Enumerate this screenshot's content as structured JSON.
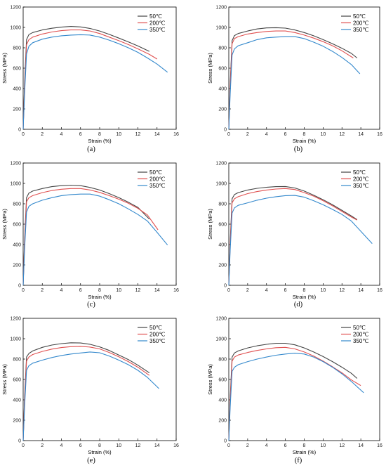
{
  "chart_data": [
    {
      "type": "line",
      "panel_label": "(a)",
      "xlabel": "Strain (%)",
      "ylabel": "Stress (MPa)",
      "xlim": [
        0,
        16
      ],
      "ylim": [
        0,
        1200
      ],
      "xticks": [
        0,
        2,
        4,
        6,
        8,
        10,
        12,
        14,
        16
      ],
      "yticks": [
        0,
        200,
        400,
        600,
        800,
        1000,
        1200
      ],
      "legend_position": "top-right",
      "series": [
        {
          "name": "50℃",
          "color": "#444444",
          "x": [
            0,
            0.15,
            0.35,
            0.6,
            1,
            2,
            3,
            4,
            5,
            6,
            7,
            8,
            9,
            10,
            11,
            12,
            13.2
          ],
          "y": [
            0,
            450,
            880,
            930,
            950,
            975,
            992,
            1003,
            1010,
            1005,
            990,
            965,
            932,
            895,
            858,
            818,
            765
          ]
        },
        {
          "name": "200℃",
          "color": "#e05050",
          "x": [
            0,
            0.15,
            0.35,
            0.6,
            1,
            2,
            3,
            4,
            5,
            6,
            7,
            8,
            9,
            10,
            11,
            12,
            13.2,
            14
          ],
          "y": [
            0,
            400,
            830,
            880,
            905,
            935,
            955,
            968,
            975,
            975,
            965,
            940,
            905,
            870,
            832,
            790,
            735,
            690
          ]
        },
        {
          "name": "350℃",
          "color": "#3388cc",
          "x": [
            0,
            0.15,
            0.35,
            0.6,
            1,
            2,
            3,
            4,
            5,
            6,
            7,
            8,
            9,
            10,
            11,
            12,
            13,
            14,
            15.1
          ],
          "y": [
            0,
            350,
            740,
            815,
            850,
            885,
            905,
            918,
            925,
            928,
            925,
            905,
            875,
            840,
            800,
            755,
            700,
            640,
            560
          ]
        }
      ]
    },
    {
      "type": "line",
      "panel_label": "(b)",
      "xlabel": "Strain (%)",
      "ylabel": "Stress (MPa)",
      "xlim": [
        0,
        16
      ],
      "ylim": [
        0,
        1200
      ],
      "xticks": [
        0,
        2,
        4,
        6,
        8,
        10,
        12,
        14,
        16
      ],
      "yticks": [
        0,
        200,
        400,
        600,
        800,
        1000,
        1200
      ],
      "legend_position": "top-right",
      "series": [
        {
          "name": "50℃",
          "color": "#444444",
          "x": [
            0,
            0.15,
            0.35,
            0.6,
            1,
            2,
            3,
            4,
            5,
            6,
            7,
            8,
            9,
            10,
            11,
            12,
            13,
            13.6
          ],
          "y": [
            0,
            450,
            870,
            920,
            940,
            965,
            985,
            995,
            997,
            993,
            975,
            950,
            918,
            880,
            840,
            795,
            745,
            700
          ]
        },
        {
          "name": "200℃",
          "color": "#e05050",
          "x": [
            0,
            0.15,
            0.35,
            0.6,
            1,
            2,
            3,
            4,
            5,
            6,
            7,
            8,
            9,
            10,
            11,
            12,
            13.2
          ],
          "y": [
            0,
            420,
            840,
            890,
            910,
            935,
            950,
            960,
            965,
            965,
            950,
            925,
            895,
            860,
            820,
            770,
            700
          ]
        },
        {
          "name": "350℃",
          "color": "#3388cc",
          "x": [
            0,
            0.15,
            0.35,
            0.6,
            1,
            2,
            3,
            4,
            5,
            6,
            7,
            8,
            9,
            10,
            11,
            12,
            13,
            13.9
          ],
          "y": [
            0,
            350,
            730,
            790,
            820,
            850,
            880,
            898,
            905,
            910,
            910,
            890,
            855,
            815,
            765,
            705,
            635,
            545
          ]
        }
      ]
    },
    {
      "type": "line",
      "panel_label": "(c)",
      "xlabel": "Strain (%)",
      "ylabel": "Stress (MPa)",
      "xlim": [
        0,
        16
      ],
      "ylim": [
        0,
        1200
      ],
      "xticks": [
        0,
        2,
        4,
        6,
        8,
        10,
        12,
        14,
        16
      ],
      "yticks": [
        0,
        200,
        400,
        600,
        800,
        1000,
        1200
      ],
      "legend_position": "top-right",
      "series": [
        {
          "name": "50℃",
          "color": "#444444",
          "x": [
            0,
            0.15,
            0.35,
            0.6,
            1,
            2,
            3,
            4,
            5,
            6,
            7,
            8,
            9,
            10,
            11,
            12,
            13.2
          ],
          "y": [
            0,
            440,
            860,
            905,
            925,
            950,
            968,
            978,
            983,
            978,
            960,
            935,
            900,
            860,
            815,
            765,
            650
          ]
        },
        {
          "name": "200℃",
          "color": "#e05050",
          "x": [
            0,
            0.15,
            0.35,
            0.6,
            1,
            2,
            3,
            4,
            5,
            6,
            7,
            8,
            9,
            10,
            11,
            12,
            13,
            14.1
          ],
          "y": [
            0,
            410,
            820,
            860,
            880,
            910,
            930,
            943,
            950,
            950,
            935,
            912,
            880,
            845,
            805,
            755,
            690,
            545
          ]
        },
        {
          "name": "350℃",
          "color": "#3388cc",
          "x": [
            0,
            0.15,
            0.35,
            0.6,
            1,
            2,
            3,
            4,
            5,
            6,
            7,
            8,
            9,
            10,
            11,
            12,
            13,
            14,
            15.1
          ],
          "y": [
            0,
            350,
            720,
            775,
            800,
            835,
            860,
            880,
            890,
            895,
            895,
            875,
            840,
            800,
            750,
            695,
            630,
            520,
            395
          ]
        }
      ]
    },
    {
      "type": "line",
      "panel_label": "(d)",
      "xlabel": "Strain (%)",
      "ylabel": "Stress (MPa)",
      "xlim": [
        0,
        16
      ],
      "ylim": [
        0,
        1200
      ],
      "xticks": [
        0,
        2,
        4,
        6,
        8,
        10,
        12,
        14,
        16
      ],
      "yticks": [
        0,
        200,
        400,
        600,
        800,
        1000,
        1200
      ],
      "legend_position": "top-right",
      "series": [
        {
          "name": "50℃",
          "color": "#444444",
          "x": [
            0,
            0.15,
            0.35,
            0.6,
            1,
            2,
            3,
            4,
            5,
            6,
            7,
            8,
            9,
            10,
            11,
            12,
            13,
            13.6
          ],
          "y": [
            0,
            430,
            850,
            890,
            910,
            935,
            952,
            962,
            968,
            970,
            955,
            925,
            885,
            840,
            790,
            735,
            680,
            645
          ]
        },
        {
          "name": "200℃",
          "color": "#e05050",
          "x": [
            0,
            0.15,
            0.35,
            0.6,
            1,
            2,
            3,
            4,
            5,
            6,
            7,
            8,
            9,
            10,
            11,
            12,
            13,
            13.6
          ],
          "y": [
            0,
            400,
            810,
            850,
            870,
            900,
            920,
            935,
            945,
            950,
            940,
            910,
            875,
            830,
            780,
            725,
            670,
            640
          ]
        },
        {
          "name": "350℃",
          "color": "#3388cc",
          "x": [
            0,
            0.15,
            0.35,
            0.6,
            1,
            2,
            3,
            4,
            5,
            6,
            7,
            8,
            9,
            10,
            11,
            12,
            13,
            14,
            15.2
          ],
          "y": [
            0,
            350,
            710,
            760,
            785,
            810,
            835,
            855,
            870,
            880,
            882,
            865,
            830,
            790,
            745,
            695,
            630,
            530,
            410
          ]
        }
      ]
    },
    {
      "type": "line",
      "panel_label": "(e)",
      "xlabel": "Strain (%)",
      "ylabel": "Stress (MPa)",
      "xlim": [
        0,
        16
      ],
      "ylim": [
        0,
        1200
      ],
      "xticks": [
        0,
        2,
        4,
        6,
        8,
        10,
        12,
        14,
        16
      ],
      "yticks": [
        0,
        200,
        400,
        600,
        800,
        1000,
        1200
      ],
      "legend_position": "top-right",
      "series": [
        {
          "name": "50℃",
          "color": "#444444",
          "x": [
            0,
            0.15,
            0.35,
            0.6,
            1,
            2,
            3,
            4,
            5,
            6,
            7,
            8,
            9,
            10,
            11,
            12,
            13.2
          ],
          "y": [
            0,
            420,
            820,
            855,
            880,
            915,
            938,
            952,
            960,
            958,
            945,
            920,
            885,
            840,
            795,
            740,
            665
          ]
        },
        {
          "name": "200℃",
          "color": "#e05050",
          "x": [
            0,
            0.15,
            0.35,
            0.6,
            1,
            2,
            3,
            4,
            5,
            6,
            7,
            8,
            9,
            10,
            11,
            12,
            13.2
          ],
          "y": [
            0,
            390,
            780,
            820,
            845,
            875,
            898,
            913,
            922,
            925,
            918,
            900,
            865,
            822,
            775,
            720,
            640
          ]
        },
        {
          "name": "350℃",
          "color": "#3388cc",
          "x": [
            0,
            0.15,
            0.35,
            0.6,
            1,
            2,
            3,
            4,
            5,
            6,
            7,
            8,
            9,
            10,
            11,
            12,
            13,
            14.2
          ],
          "y": [
            0,
            330,
            690,
            735,
            760,
            790,
            815,
            835,
            850,
            860,
            870,
            862,
            830,
            790,
            745,
            690,
            620,
            510
          ]
        }
      ]
    },
    {
      "type": "line",
      "panel_label": "(f)",
      "xlabel": "Strain (%)",
      "ylabel": "Stress (MPa)",
      "xlim": [
        0,
        16
      ],
      "ylim": [
        0,
        1200
      ],
      "xticks": [
        0,
        2,
        4,
        6,
        8,
        10,
        12,
        14,
        16
      ],
      "yticks": [
        0,
        200,
        400,
        600,
        800,
        1000,
        1200
      ],
      "legend_position": "top-right",
      "series": [
        {
          "name": "50℃",
          "color": "#444444",
          "x": [
            0,
            0.15,
            0.35,
            0.6,
            1,
            2,
            3,
            4,
            5,
            6,
            7,
            8,
            9,
            10,
            11,
            12,
            13,
            13.6
          ],
          "y": [
            0,
            420,
            820,
            860,
            880,
            910,
            930,
            945,
            955,
            955,
            940,
            910,
            870,
            825,
            775,
            720,
            660,
            610
          ]
        },
        {
          "name": "200℃",
          "color": "#e05050",
          "x": [
            0,
            0.15,
            0.35,
            0.6,
            1,
            2,
            3,
            4,
            5,
            6,
            7,
            8,
            9,
            10,
            11,
            12,
            13,
            14
          ],
          "y": [
            0,
            390,
            780,
            820,
            840,
            865,
            885,
            900,
            912,
            915,
            900,
            870,
            830,
            780,
            725,
            665,
            595,
            540
          ]
        },
        {
          "name": "350℃",
          "color": "#3388cc",
          "x": [
            0,
            0.15,
            0.35,
            0.6,
            1,
            2,
            3,
            4,
            5,
            6,
            7,
            8,
            9,
            10,
            11,
            12,
            13,
            14.3
          ],
          "y": [
            0,
            330,
            680,
            720,
            745,
            775,
            800,
            820,
            838,
            850,
            858,
            850,
            820,
            775,
            720,
            655,
            580,
            470
          ]
        }
      ]
    }
  ]
}
